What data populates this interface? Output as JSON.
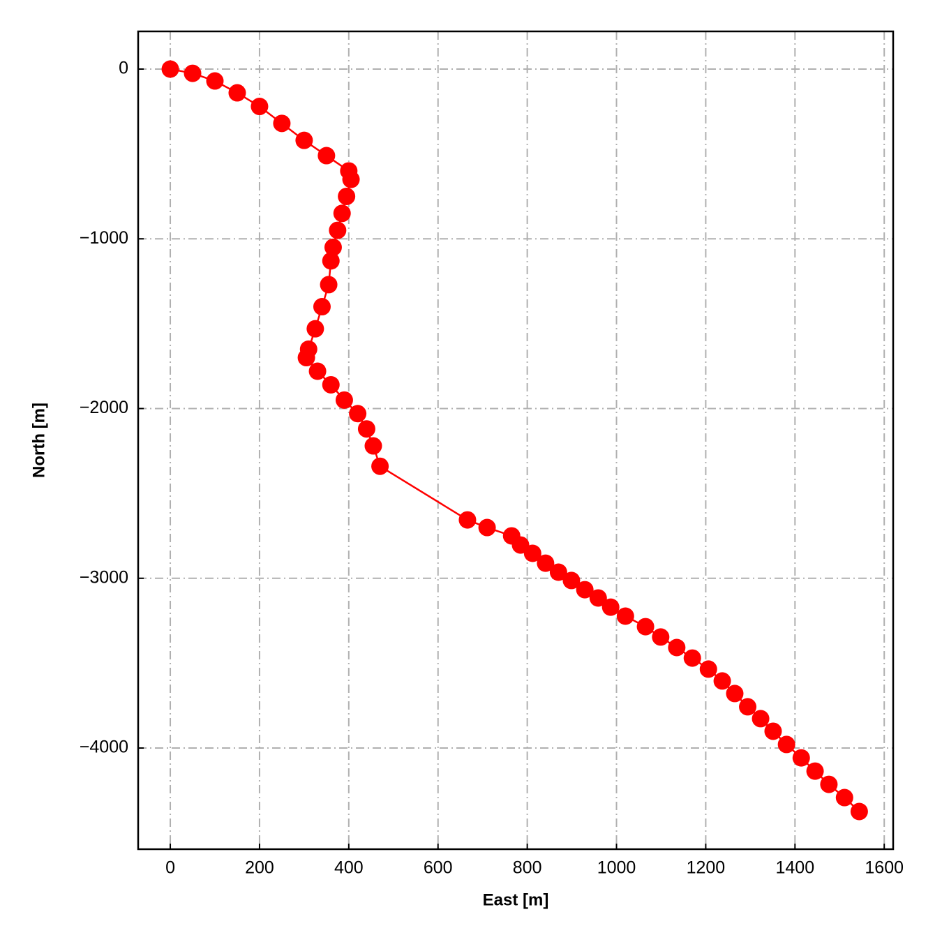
{
  "chart_data": {
    "type": "line",
    "xlabel": "East [m]",
    "ylabel": "North [m]",
    "color": "#ff0000",
    "grid": true,
    "x": [
      0,
      50,
      100,
      150,
      200,
      250,
      300,
      350,
      400,
      405,
      395,
      385,
      375,
      365,
      360,
      355,
      340,
      325,
      310,
      305,
      330,
      360,
      390,
      420,
      440,
      455,
      470,
      666,
      710,
      765,
      785,
      812,
      841,
      870,
      899,
      929,
      959,
      987,
      1020,
      1065,
      1099,
      1135,
      1170,
      1206,
      1237,
      1265,
      1294,
      1323,
      1351,
      1381,
      1414,
      1445,
      1476,
      1511,
      1544
    ],
    "values": [
      0,
      -25,
      -70,
      -140,
      -220,
      -320,
      -420,
      -510,
      -600,
      -650,
      -750,
      -850,
      -950,
      -1050,
      -1130,
      -1270,
      -1400,
      -1530,
      -1650,
      -1700,
      -1780,
      -1860,
      -1950,
      -2030,
      -2120,
      -2220,
      -2340,
      -2656,
      -2701,
      -2750,
      -2804,
      -2853,
      -2911,
      -2964,
      -3013,
      -3067,
      -3116,
      -3170,
      -3223,
      -3285,
      -3346,
      -3408,
      -3470,
      -3535,
      -3605,
      -3679,
      -3757,
      -3827,
      -3901,
      -3979,
      -4058,
      -4136,
      -4214,
      -4292,
      -4374
    ],
    "xlim": [
      -72,
      1620
    ],
    "ylim": [
      -4596,
      222
    ],
    "xticks": [
      0,
      200,
      400,
      600,
      800,
      1000,
      1200,
      1400,
      1600
    ],
    "yticks": [
      {
        "value": -4000,
        "label": "−4000"
      },
      {
        "value": -3000,
        "label": "−3000"
      },
      {
        "value": -2000,
        "label": "−2000"
      },
      {
        "value": -1000,
        "label": "−1000"
      },
      0
    ]
  }
}
